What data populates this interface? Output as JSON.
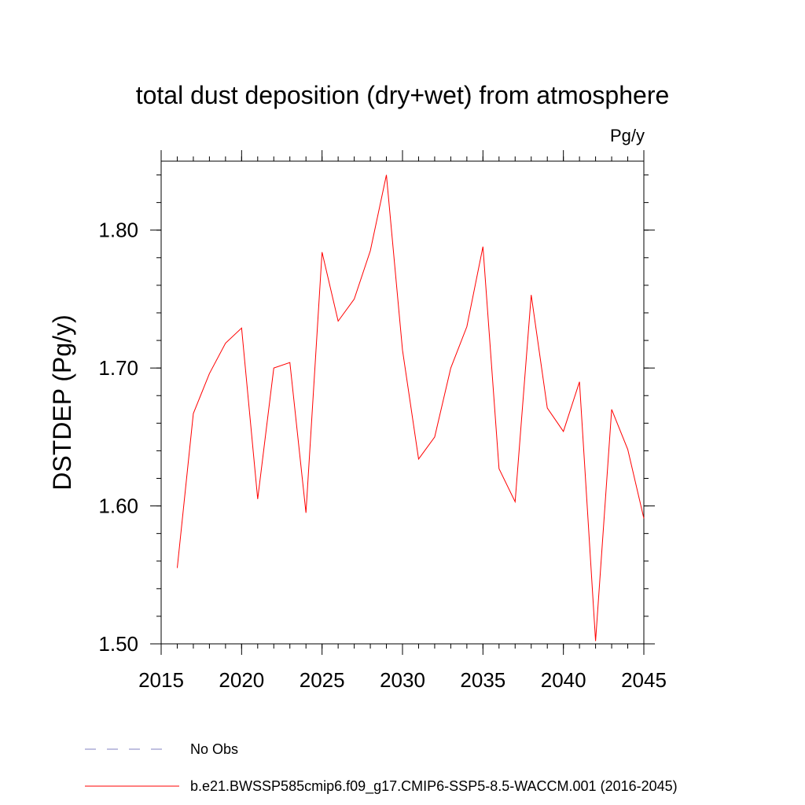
{
  "chart_data": {
    "type": "line",
    "title": "total dust deposition (dry+wet) from atmosphere",
    "units_label": "Pg/y",
    "ylabel": "DSTDEP  (Pg/y)",
    "xlabel": "",
    "xlim": [
      2015,
      2045
    ],
    "ylim": [
      1.5,
      1.85
    ],
    "x_ticks": [
      2015,
      2020,
      2025,
      2030,
      2035,
      2040,
      2045
    ],
    "x_tick_labels": [
      "2015",
      "2020",
      "2025",
      "2030",
      "2035",
      "2040",
      "2045"
    ],
    "y_ticks": [
      1.5,
      1.6,
      1.7,
      1.8
    ],
    "y_tick_labels": [
      "1.50",
      "1.60",
      "1.70",
      "1.80"
    ],
    "y_minor_step": 0.02,
    "x_minor_step": 1,
    "grid": false,
    "series": [
      {
        "name": "b.e21.BWSSP585cmip6.f09_g17.CMIP6-SSP5-8.5-WACCM.001 (2016-2045)",
        "color": "#ff0000",
        "x": [
          2016,
          2017,
          2018,
          2019,
          2020,
          2021,
          2022,
          2023,
          2024,
          2025,
          2026,
          2027,
          2028,
          2029,
          2030,
          2031,
          2032,
          2033,
          2034,
          2035,
          2036,
          2037,
          2038,
          2039,
          2040,
          2041,
          2042,
          2043,
          2044,
          2045
        ],
        "values": [
          1.555,
          1.667,
          1.696,
          1.718,
          1.729,
          1.605,
          1.7,
          1.704,
          1.595,
          1.784,
          1.734,
          1.75,
          1.785,
          1.84,
          1.713,
          1.634,
          1.65,
          1.7,
          1.73,
          1.788,
          1.627,
          1.603,
          1.753,
          1.671,
          1.654,
          1.69,
          1.502,
          1.67,
          1.641,
          1.591
        ]
      }
    ],
    "legend": {
      "placement": "bottom",
      "entries": [
        {
          "label": "No Obs",
          "color": "#8080c0",
          "style": "dashed"
        },
        {
          "label": "b.e21.BWSSP585cmip6.f09_g17.CMIP6-SSP5-8.5-WACCM.001 (2016-2045)",
          "color": "#ff0000",
          "style": "solid"
        }
      ]
    }
  }
}
